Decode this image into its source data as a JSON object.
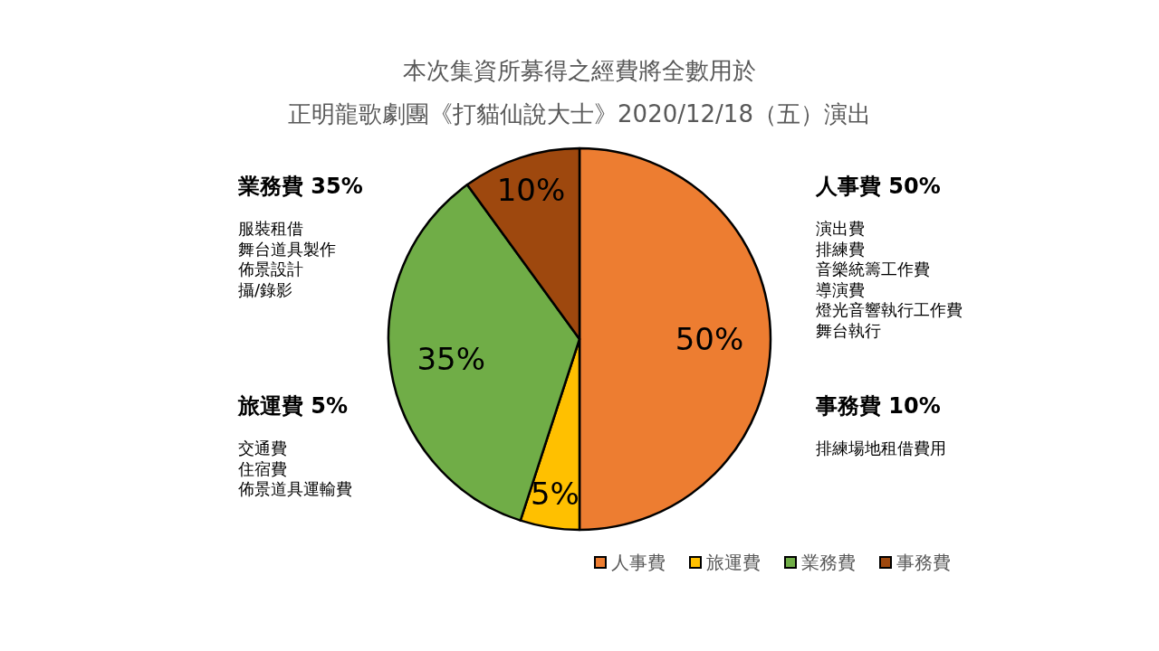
{
  "chart_data": {
    "type": "pie",
    "title": "本次集資所募得之經費將全數用於",
    "subtitle": "正明龍歌劇團《打貓仙說大士》2020/12/18（五）演出",
    "categories": [
      "人事費",
      "旅運費",
      "業務費",
      "事務費"
    ],
    "values": [
      50,
      5,
      35,
      10
    ],
    "colors": [
      "#ed7d31",
      "#ffc000",
      "#70ad47",
      "#9e480e"
    ],
    "value_labels": [
      "50%",
      "5%",
      "35%",
      "10%"
    ],
    "legend": "bottom right",
    "annotations": [
      "業務費 35%",
      "服裝租借",
      "舞台道具製作",
      "佈景設計",
      "攝/錄影",
      "人事費 50%",
      "演出費",
      "排練費",
      "音樂統籌工作費",
      "導演費",
      "燈光音響執行工作費",
      "舞台執行",
      "旅運費 5%",
      "交通費",
      "住宿費",
      "佈景道具運輸費",
      "事務費 10%",
      "排練場地租借費用"
    ]
  }
}
